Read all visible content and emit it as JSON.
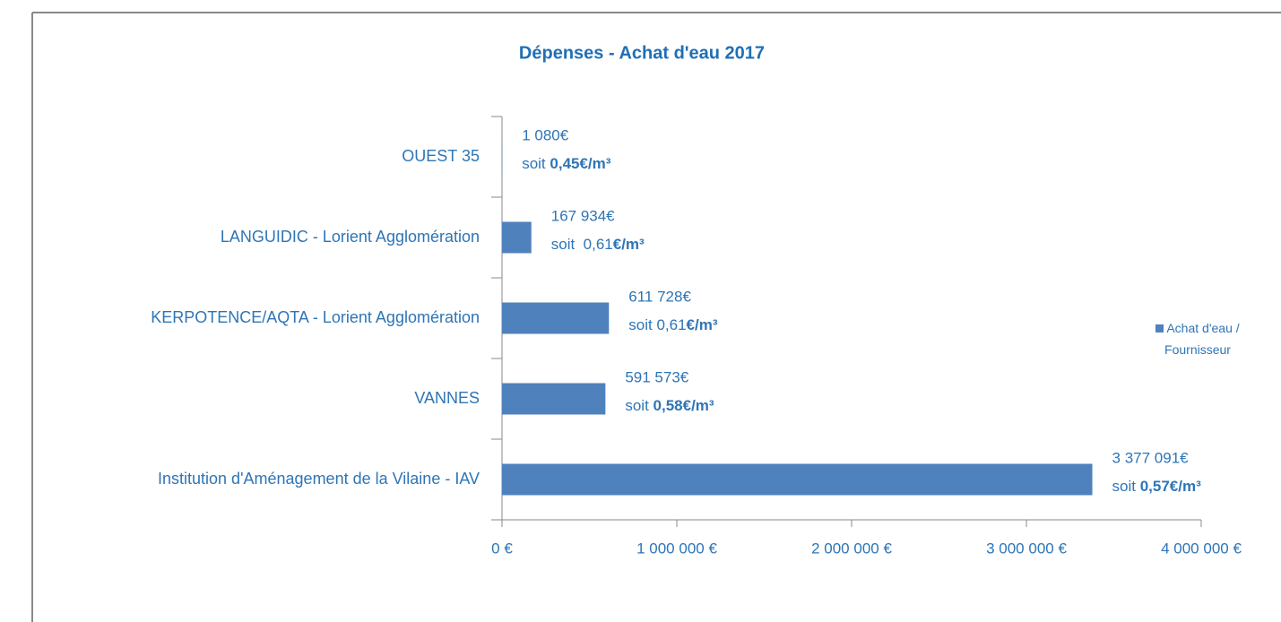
{
  "chart_data": {
    "type": "barh",
    "title": "Dépenses - Achat d'eau 2017",
    "categories": [
      "OUEST 35",
      "LANGUIDIC - Lorient Agglomération",
      "KERPOTENCE/AQTA - Lorient Agglomération",
      "VANNES",
      "Institution d'Aménagement de la Vilaine - IAV"
    ],
    "series": [
      {
        "name": "Achat d'eau / Fournisseur",
        "color": "#4f81bd",
        "values": [
          1080,
          167934,
          611728,
          591573,
          3377091
        ],
        "value_labels": [
          "1 080€",
          "167 934€",
          "611 728€",
          "591 573€",
          "3 377 091€"
        ]
      }
    ],
    "unit_labels": [
      [
        {
          "text": "soit ",
          "bold": false
        },
        {
          "text": "0,45€/m³",
          "bold": true
        }
      ],
      [
        {
          "text": "soit  0,61",
          "bold": false
        },
        {
          "text": "€/m³",
          "bold": true
        }
      ],
      [
        {
          "text": "soit 0,61",
          "bold": false
        },
        {
          "text": "€/m³",
          "bold": true
        }
      ],
      [
        {
          "text": "soit ",
          "bold": false
        },
        {
          "text": "0,58€/m³",
          "bold": true
        }
      ],
      [
        {
          "text": "soit ",
          "bold": false
        },
        {
          "text": "0,57€/m³",
          "bold": true
        }
      ]
    ],
    "xlim": [
      0,
      4000000
    ],
    "xticks": [
      {
        "value": 0,
        "label": "0 €"
      },
      {
        "value": 1000000,
        "label": "1 000 000 €"
      },
      {
        "value": 2000000,
        "label": "2 000 000 €"
      },
      {
        "value": 3000000,
        "label": "3 000 000 €"
      },
      {
        "value": 4000000,
        "label": "4 000 000 €"
      }
    ],
    "legend": "right"
  }
}
